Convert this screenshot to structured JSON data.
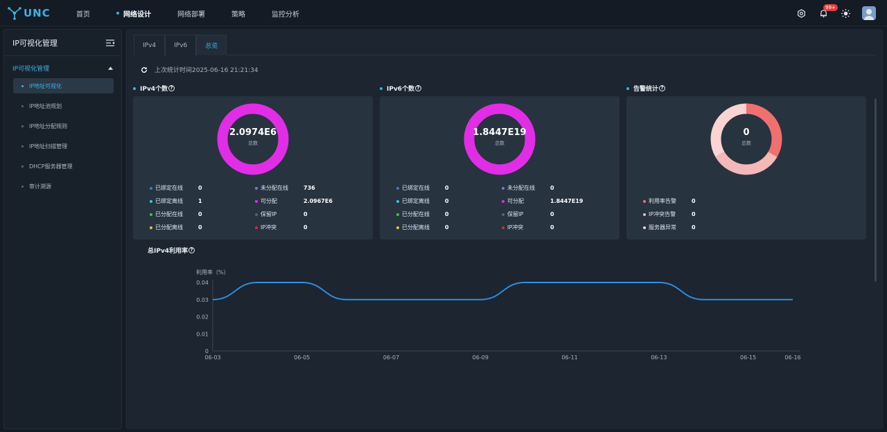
{
  "app": {
    "brand": "UNC"
  },
  "nav": {
    "items": [
      {
        "label": "首页",
        "active": false
      },
      {
        "label": "网络设计",
        "active": true
      },
      {
        "label": "网络部署",
        "active": false
      },
      {
        "label": "策略",
        "active": false
      },
      {
        "label": "监控分析",
        "active": false
      }
    ]
  },
  "topbar": {
    "notif_badge": "99+"
  },
  "sidebar": {
    "title": "IP可视化管理",
    "group_label": "IP可视化管理",
    "items": [
      {
        "label": "IP地址可视化",
        "active": true
      },
      {
        "label": "IP地址池规划",
        "active": false
      },
      {
        "label": "IP地址分配规则",
        "active": false
      },
      {
        "label": "IP地址扫描管理",
        "active": false
      },
      {
        "label": "DHCP服务器管理",
        "active": false
      },
      {
        "label": "审计溯源",
        "active": false
      }
    ]
  },
  "tabs": [
    {
      "label": "IPv4",
      "active": false
    },
    {
      "label": "IPv6",
      "active": false
    },
    {
      "label": "总览",
      "active": true
    }
  ],
  "stat_time": "上次统计时间2025-06-16 21:21:34",
  "ipv4": {
    "title": "IPv4个数",
    "total": "2.0974E6",
    "total_label": "总数",
    "ring_color": "#e12de6",
    "legend": [
      {
        "label": "已绑定在线",
        "value": "0",
        "color": "#2f7fe0"
      },
      {
        "label": "未分配在线",
        "value": "736",
        "color": "#8a6ee0"
      },
      {
        "label": "已绑定离线",
        "value": "1",
        "color": "#35c8e8"
      },
      {
        "label": "可分配",
        "value": "2.0967E6",
        "color": "#e12de6"
      },
      {
        "label": "已分配在线",
        "value": "0",
        "color": "#42c442"
      },
      {
        "label": "保留IP",
        "value": "0",
        "color": "#5a6470"
      },
      {
        "label": "已分配离线",
        "value": "0",
        "color": "#e8c830"
      },
      {
        "label": "IP冲突",
        "value": "0",
        "color": "#e02a2a"
      }
    ]
  },
  "ipv6": {
    "title": "IPv6个数",
    "total": "1.8447E19",
    "total_label": "总数",
    "ring_color": "#e12de6",
    "legend": [
      {
        "label": "已绑定在线",
        "value": "0",
        "color": "#2f7fe0"
      },
      {
        "label": "未分配在线",
        "value": "0",
        "color": "#8a6ee0"
      },
      {
        "label": "已绑定离线",
        "value": "0",
        "color": "#35c8e8"
      },
      {
        "label": "可分配",
        "value": "1.8447E19",
        "color": "#e12de6"
      },
      {
        "label": "已分配在线",
        "value": "0",
        "color": "#42c442"
      },
      {
        "label": "保留IP",
        "value": "0",
        "color": "#5a6470"
      },
      {
        "label": "已分配离线",
        "value": "0",
        "color": "#e8c830"
      },
      {
        "label": "IP冲突",
        "value": "0",
        "color": "#e02a2a"
      }
    ]
  },
  "alarm": {
    "title": "告警统计",
    "total": "0",
    "total_label": "总数",
    "segments": [
      {
        "color": "#f07070",
        "fraction": 0.333
      },
      {
        "color": "#f5b8b8",
        "fraction": 0.333
      },
      {
        "color": "#fbd3d3",
        "fraction": 0.334
      }
    ],
    "legend": [
      {
        "label": "利用率告警",
        "value": "0",
        "color": "#f07070"
      },
      {
        "label": "IP冲突告警",
        "value": "0",
        "color": "#f5b8b8"
      },
      {
        "label": "服务器异常",
        "value": "0",
        "color": "#fbd3d3"
      }
    ]
  },
  "chart_title": "总IPv4利用率",
  "chart_data": {
    "type": "line",
    "ylabel": "利用率（%）",
    "ylim": [
      0,
      0.04
    ],
    "yticks": [
      "0.04",
      "0.03",
      "0.02",
      "0.01",
      "0"
    ],
    "xticks": [
      "06-03",
      "06-05",
      "06-07",
      "06-09",
      "06-11",
      "06-13",
      "06-15",
      "06-16"
    ],
    "x": [
      "06-03",
      "06-04",
      "06-05",
      "06-06",
      "06-07",
      "06-08",
      "06-09",
      "06-10",
      "06-11",
      "06-12",
      "06-13",
      "06-14",
      "06-15",
      "06-16"
    ],
    "series": [
      {
        "color": "#2f8fe0",
        "values": [
          0.03,
          0.04,
          0.04,
          0.03,
          0.03,
          0.03,
          0.03,
          0.04,
          0.04,
          0.04,
          0.04,
          0.03,
          0.03,
          0.03
        ]
      }
    ]
  }
}
